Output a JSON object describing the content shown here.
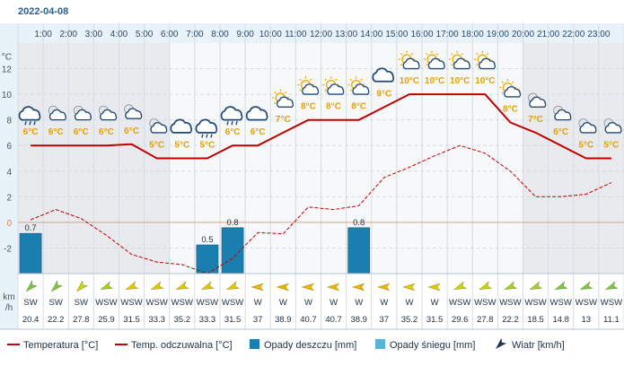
{
  "date_label": "2022-04-08",
  "y_axis_unit": "°C",
  "wind_axis_unit": [
    "km",
    "/h"
  ],
  "legend": [
    {
      "kind": "line-solid",
      "label": "Temperatura [°C]",
      "color": "#c00000"
    },
    {
      "kind": "line-dashed",
      "label": "Temp. odczuwalna [°C]",
      "color": "#c00000"
    },
    {
      "kind": "box",
      "label": "Opady deszczu [mm]",
      "color": "#1a7fae"
    },
    {
      "kind": "box",
      "label": "Opady śniegu [mm]",
      "color": "#5ab4d6"
    },
    {
      "kind": "arrow",
      "label": "Wiatr [km/h]",
      "color": "#223355"
    }
  ],
  "chart_data": {
    "type": "line",
    "hours": [
      "1:00",
      "2:00",
      "3:00",
      "4:00",
      "5:00",
      "6:00",
      "7:00",
      "8:00",
      "9:00",
      "10:00",
      "11:00",
      "12:00",
      "13:00",
      "14:00",
      "15:00",
      "16:00",
      "17:00",
      "18:00",
      "19:00",
      "20:00",
      "21:00",
      "22:00",
      "23:00"
    ],
    "ylim": [
      -4,
      14
    ],
    "yticks": [
      -2,
      0,
      2,
      4,
      6,
      8,
      10,
      12
    ],
    "ytick_labels": [
      "-2",
      "0",
      "2",
      "4",
      "6",
      "8",
      "10",
      "12"
    ],
    "grid": true,
    "x": [
      0.5,
      1.5,
      2.5,
      3.5,
      4.5,
      5.5,
      6.5,
      7.5,
      8.5,
      9.5,
      10.5,
      11.5,
      12.5,
      13.5,
      14.5,
      15.5,
      16.5,
      17.5,
      18.5,
      19.5,
      20.5,
      21.5,
      22.5,
      23.5
    ],
    "series": [
      {
        "name": "Temperatura [°C]",
        "style": "solid",
        "color": "#c00000",
        "values": [
          6,
          6,
          6,
          6,
          6.1,
          5,
          5,
          5,
          6,
          6,
          7,
          8,
          8,
          8,
          9,
          10,
          10,
          10,
          10,
          7.8,
          7,
          6,
          5,
          5
        ]
      },
      {
        "name": "Temp. odczuwalna [°C]",
        "style": "dashed",
        "color": "#c00000",
        "values": [
          0.2,
          1.0,
          0.3,
          -1.0,
          -2.5,
          -3.1,
          -3.3,
          -4.0,
          -2.8,
          -0.8,
          -0.9,
          1.2,
          1.0,
          1.3,
          3.5,
          4.3,
          5.2,
          6.0,
          5.4,
          4.0,
          2.0,
          2.0,
          2.2,
          3.1
        ]
      }
    ],
    "temp_labels": [
      "6°C",
      "6°C",
      "6°C",
      "6°C",
      "6°C",
      "5°C",
      "5°C",
      "5°C",
      "6°C",
      "6°C",
      "7°C",
      "8°C",
      "8°C",
      "8°C",
      "9°C",
      "10°C",
      "10°C",
      "10°C",
      "10°C",
      "8°C",
      "7°C",
      "6°C",
      "5°C",
      "5°C"
    ],
    "weather_icons": [
      "cloud-rain-icon",
      "cloud-sun-night-icon",
      "cloud-sun-night-icon",
      "cloud-sun-night-icon",
      "cloud-sun-night-icon",
      "cloud-sun-night-icon",
      "cloud-icon",
      "cloud-rain-icon",
      "cloud-rain-icon",
      "cloud-icon",
      "cloud-sun-icon",
      "cloud-sun-icon",
      "cloud-sun-icon",
      "cloud-sun-icon",
      "cloud-icon",
      "cloud-sun-icon",
      "cloud-sun-icon",
      "cloud-sun-icon",
      "cloud-sun-icon",
      "cloud-sun-icon",
      "cloud-sun-night-icon",
      "cloud-sun-night-icon",
      "cloud-sun-night-icon",
      "cloud-sun-night-icon"
    ],
    "precipitation": {
      "name": "Opady deszczu [mm]",
      "color": "#1a7fae",
      "values": [
        0.7,
        0,
        0,
        0,
        0,
        0,
        0,
        0.5,
        0.8,
        0,
        0,
        0,
        0,
        0.8,
        0,
        0,
        0,
        0,
        0,
        0,
        0,
        0,
        0,
        0
      ],
      "labels": [
        "0.7",
        "",
        "",
        "",
        "",
        "",
        "",
        "0.5",
        "0.8",
        "",
        "",
        "",
        "",
        "0.8",
        "",
        "",
        "",
        "",
        "",
        "",
        "",
        "",
        "",
        ""
      ]
    },
    "night_shading": [
      [
        0,
        6
      ],
      [
        20,
        24
      ]
    ],
    "wind": {
      "name": "Wiatr [km/h]",
      "directions": [
        "SW",
        "SW",
        "SW",
        "WSW",
        "WSW",
        "WSW",
        "WSW",
        "WSW",
        "WSW",
        "W",
        "W",
        "W",
        "W",
        "W",
        "W",
        "W",
        "W",
        "WSW",
        "WSW",
        "WSW",
        "WSW",
        "WSW",
        "WSW",
        "WSW"
      ],
      "speeds": [
        "20.4",
        "22.2",
        "27.8",
        "25.9",
        "31.5",
        "33.3",
        "35.2",
        "33.3",
        "31.5",
        "37",
        "38.9",
        "40.7",
        "40.7",
        "38.9",
        "37",
        "35.2",
        "31.5",
        "29.6",
        "27.8",
        "22.2",
        "18.5",
        "14.8",
        "13",
        "11.1"
      ],
      "arrow_colors": [
        "#7cc44a",
        "#7cc44a",
        "#c8d400",
        "#a6cc30",
        "#e8c400",
        "#e8c400",
        "#e8c400",
        "#e8c400",
        "#e8c400",
        "#f0b000",
        "#f0b000",
        "#f0b000",
        "#f0b000",
        "#f0b000",
        "#f0b000",
        "#e8c400",
        "#e8c400",
        "#c8d400",
        "#c8d400",
        "#a6cc30",
        "#a6cc30",
        "#7cc44a",
        "#7cc44a",
        "#7cc44a"
      ]
    },
    "colors": {
      "background": "#f7f8fa",
      "night": "#e8eaee",
      "grid": "#d6dbe4",
      "zero_line": "#e0a080",
      "header_bg": "#e8f2f9",
      "axis_strip_bg": "#e8f2f9",
      "temp_label": "#e8a000"
    }
  }
}
